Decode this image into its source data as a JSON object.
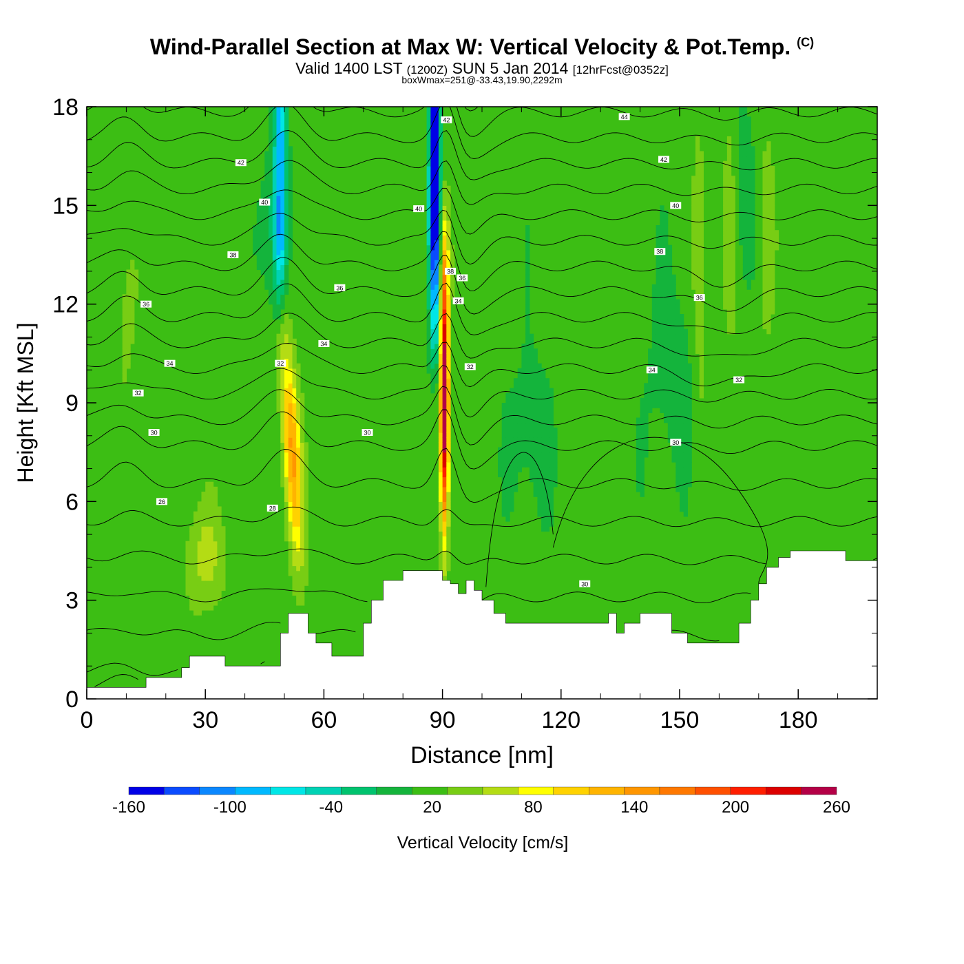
{
  "header": {
    "title": "Wind-Parallel Section at Max W: Vertical Velocity & Pot.Temp.",
    "copyright": "(C)",
    "valid_prefix": "Valid 1400 LST",
    "valid_utc": "(1200Z)",
    "valid_date": "SUN 5 Jan 2014",
    "forecast": "[12hrFcst@0352z]",
    "box_info": "boxWmax=251@-33.43,19.90,2292m"
  },
  "chart_data": {
    "type": "heatmap",
    "title": "Wind-Parallel Section at Max W: Vertical Velocity & Pot.Temp.",
    "xlabel": "Distance [nm]",
    "ylabel": "Height [Kft MSL]",
    "xlim": [
      0,
      200
    ],
    "ylim": [
      0,
      18
    ],
    "x_ticks": [
      0,
      30,
      60,
      90,
      120,
      150,
      180
    ],
    "y_ticks": [
      0,
      3,
      6,
      9,
      12,
      15,
      18
    ],
    "colorbar": {
      "label": "Vertical Velocity [cm/s]",
      "tick_labels": [
        "-160",
        "-100",
        "-40",
        "20",
        "80",
        "140",
        "200",
        "260"
      ],
      "bins": [
        -160,
        -140,
        -120,
        -100,
        -80,
        -60,
        -40,
        -20,
        0,
        20,
        40,
        60,
        80,
        100,
        120,
        140,
        160,
        180,
        200,
        220,
        240,
        260
      ],
      "colors": [
        "#0000e6",
        "#0a4bff",
        "#0a87ff",
        "#00b9ff",
        "#00e6e6",
        "#00d2b4",
        "#00c36e",
        "#14b43c",
        "#3cbe14",
        "#78cd14",
        "#b4dc14",
        "#ffff00",
        "#ffd200",
        "#ffb400",
        "#ff9600",
        "#ff7800",
        "#ff5000",
        "#ff1e00",
        "#dc0000",
        "#b40046"
      ]
    },
    "max_w_cm_s": 251,
    "peaks": [
      {
        "name": "strong updraft",
        "x_nm": 90.5,
        "w_cm_s": 250
      },
      {
        "name": "strong downdraft",
        "x_nm": 88,
        "w_cm_s": -160
      },
      {
        "name": "updraft",
        "x_nm": 52,
        "w_cm_s": 120
      },
      {
        "name": "downdraft",
        "x_nm": 49,
        "w_cm_s": -60
      }
    ],
    "theta_contours": {
      "interval": 1,
      "label_values": [
        26,
        28,
        30,
        32,
        34,
        36,
        38,
        40,
        42,
        44
      ]
    },
    "terrain_kft": {
      "x": [
        0,
        10,
        15,
        20,
        24,
        26,
        30,
        35,
        40,
        45,
        49,
        51,
        56,
        58,
        62,
        66,
        70,
        72,
        75,
        78,
        80,
        85,
        88,
        90,
        92,
        94,
        96,
        98,
        100,
        103,
        106,
        108,
        112,
        115,
        118,
        120,
        122,
        125,
        128,
        132,
        134,
        136,
        140,
        144,
        148,
        152,
        160,
        165,
        168,
        170,
        172,
        175,
        178,
        182,
        188,
        192,
        200
      ],
      "z": [
        0.35,
        0.35,
        0.65,
        0.65,
        0.95,
        1.3,
        1.3,
        1.0,
        1.0,
        1.0,
        2.0,
        2.6,
        2.0,
        1.7,
        1.3,
        1.3,
        2.3,
        3.0,
        3.6,
        3.6,
        3.9,
        3.9,
        3.9,
        3.6,
        3.5,
        3.2,
        3.6,
        3.3,
        3.0,
        2.6,
        2.3,
        2.3,
        2.3,
        2.3,
        2.3,
        2.3,
        2.3,
        2.3,
        2.3,
        2.6,
        2.0,
        2.3,
        2.6,
        2.6,
        2.0,
        1.7,
        1.7,
        2.3,
        3.0,
        3.5,
        4.0,
        4.3,
        4.5,
        4.5,
        4.5,
        4.2,
        4.2
      ]
    }
  }
}
